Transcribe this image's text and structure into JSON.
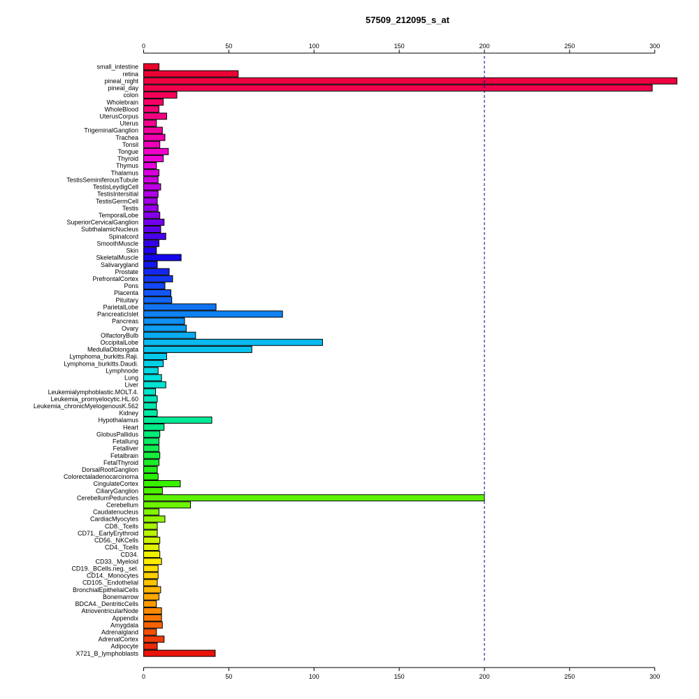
{
  "chart_data": {
    "type": "bar",
    "orientation": "horizontal",
    "title": "57509_212095_s_at",
    "xlabel": "",
    "ylabel": "",
    "xlim": [
      0,
      313
    ],
    "xticks": [
      0,
      50,
      100,
      150,
      200,
      250,
      300
    ],
    "reference_line": {
      "value": 200,
      "style": "dashed",
      "color": "#000080"
    },
    "categories": [
      "small_intestine",
      "retina",
      "pineal_night",
      "pineal_day",
      "colon",
      "Wholebrain",
      "WholeBlood",
      "UterusCorpus",
      "Uterus",
      "TrigeminalGanglion",
      "Trachea",
      "Tonsil",
      "Tongue",
      "Thyroid",
      "Thymus",
      "Thalamus",
      "TestisSeminiferousTubule",
      "TestisLeydigCell",
      "TestisIntersitial",
      "TestisGermCell",
      "Testis",
      "TemporalLobe",
      "SuperiorCervicalGanglion",
      "SubthalamicNucleus",
      "Spinalcord",
      "SmoothMuscle",
      "Skin",
      "SkeletalMuscle",
      "Salivarygland",
      "Prostate",
      "PrefrontalCortex",
      "Pons",
      "Placenta",
      "Pituitary",
      "ParietalLobe",
      "PancreaticIslet",
      "Pancreas",
      "Ovary",
      "OlfactoryBulb",
      "OccipitalLobe",
      "MedullaOblongata",
      "Lymphoma_burkitts.Raji.",
      "Lymphoma_burkitts.Daudi.",
      "Lymphnode",
      "Lung",
      "Liver",
      "Leukemialymphoblastic.MOLT.4.",
      "Leukemia_promyelocytic.HL.60",
      "Leukemia_chronicMyelogenousK.562",
      "Kidney",
      "Hypothalamus",
      "Heart",
      "GlobusPallidus",
      "Fetallung",
      "Fetalliver",
      "Fetalbrain",
      "FetalThyroid",
      "DorsalRootGanglion",
      "Colorectaladenocarcinoma",
      "CingulateCortex",
      "CiliaryGanglion",
      "CerebellumPeduncles",
      "Cerebellum",
      "Caudatenucleus",
      "CardiacMyocytes",
      "CD8._Tcells",
      "CD71._EarlyErythroid",
      "CD56._NKCells",
      "CD4._Tcells",
      "CD34.",
      "CD33._Myeloid",
      "CD19._BCells.neg._sel.",
      "CD14._Monocytes",
      "CD105._Endothelial",
      "BronchialEpithelialCells",
      "Bonemarrow",
      "BDCA4._DentriticCells",
      "AtrioventricularNode",
      "Appendix",
      "Amygdala",
      "Adrenalgland",
      "AdrenalCortex",
      "Adipocyte",
      "X721_B_lymphoblasts"
    ],
    "values": [
      9,
      55.5,
      314,
      298.5,
      19.5,
      11.5,
      9,
      13.5,
      7.5,
      11,
      12.5,
      9.5,
      14.5,
      11.5,
      7.5,
      9,
      8.5,
      10,
      8.5,
      8,
      8.5,
      9.5,
      12,
      10,
      13,
      9,
      7.5,
      22,
      8,
      15,
      17,
      12.5,
      16,
      16.5,
      42.5,
      81.5,
      24,
      25,
      30.5,
      105,
      63.5,
      13.5,
      11.5,
      8.5,
      10.5,
      13,
      7,
      8,
      7.5,
      8,
      40,
      12,
      9.5,
      9,
      9,
      9.5,
      9,
      8,
      8.5,
      21.5,
      11,
      200,
      27.5,
      9,
      12.5,
      8,
      8,
      9.5,
      9,
      9.5,
      10.5,
      8.5,
      8.5,
      8,
      10,
      9,
      7.5,
      10.5,
      10.5,
      11,
      7.5,
      12,
      8,
      42
    ],
    "colors_note": "rainbow gradient from red (top) through magenta, violet, blue, cyan, green, yellow, orange back to red (bottom)",
    "grid": false,
    "legend": "none"
  }
}
